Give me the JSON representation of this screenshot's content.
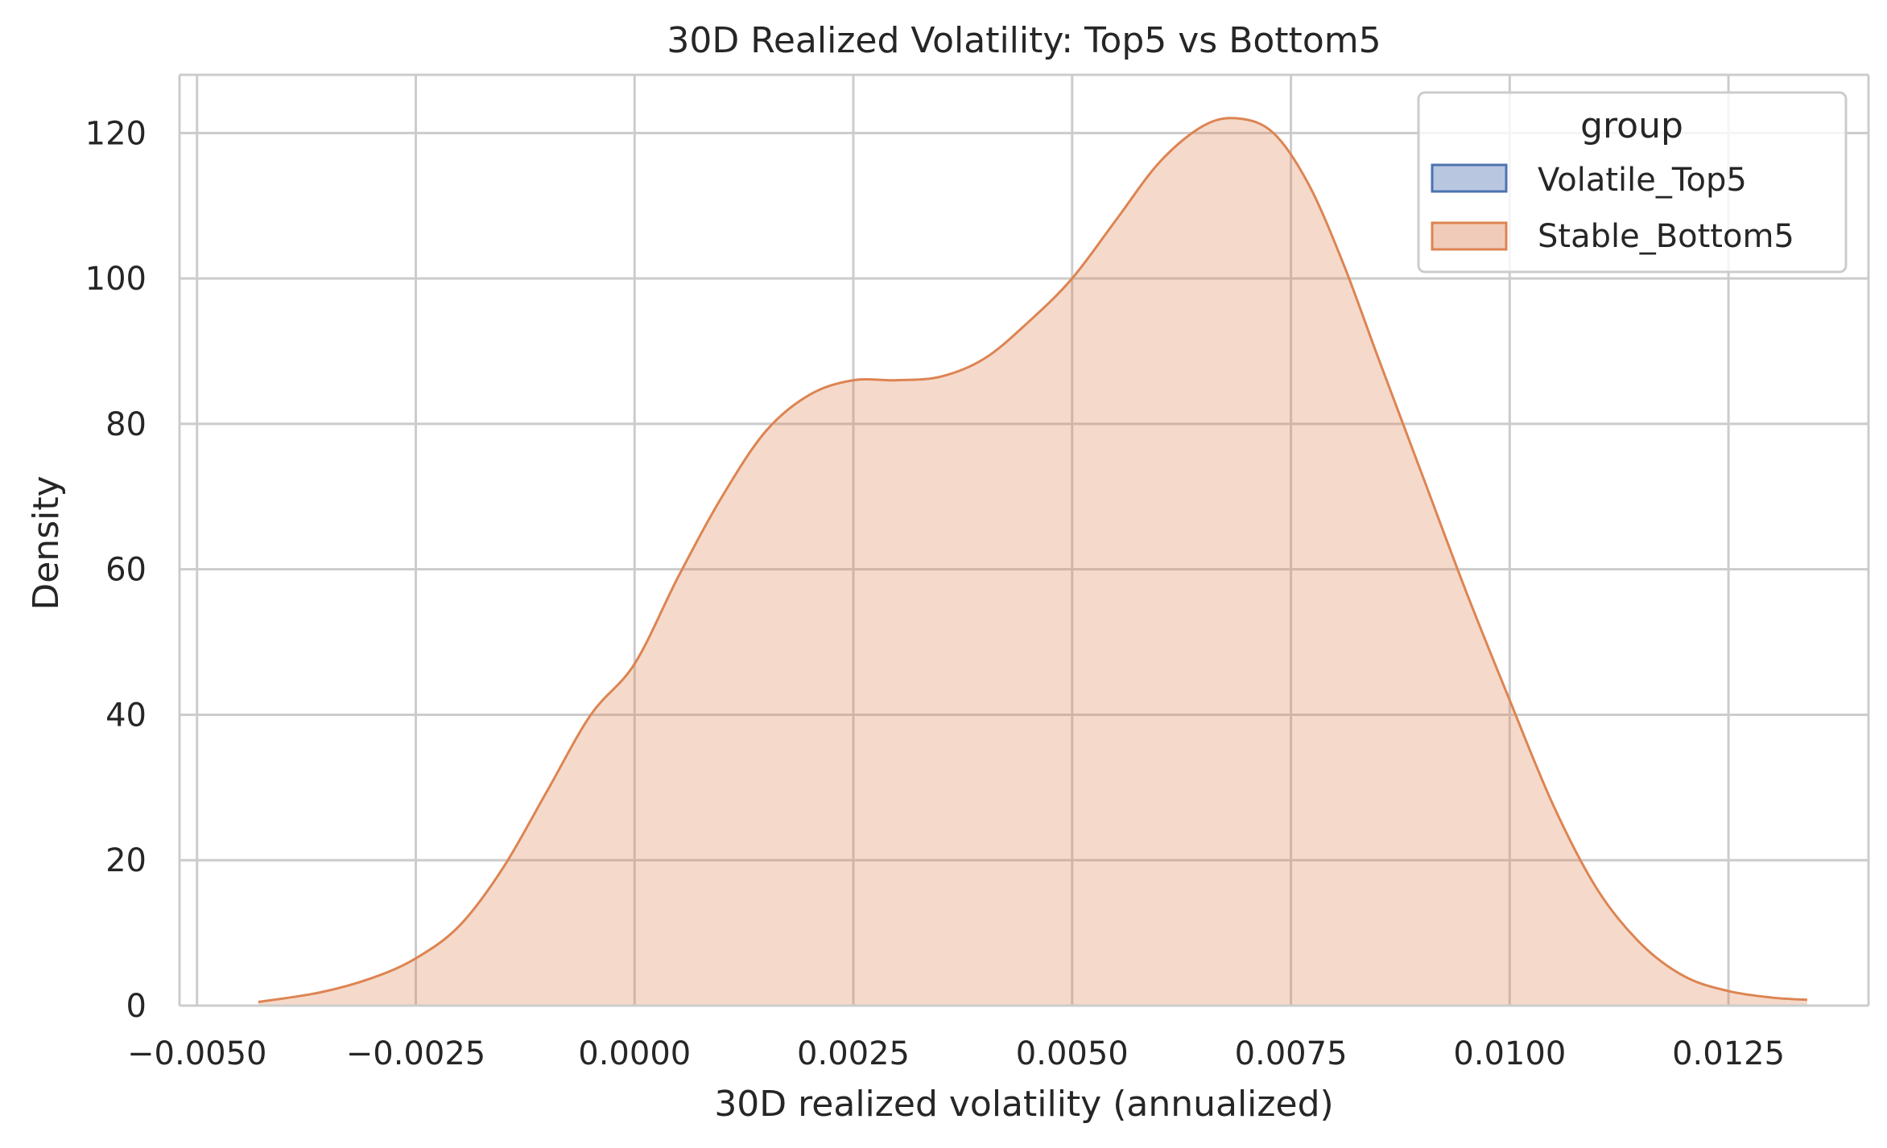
{
  "chart_data": {
    "type": "area",
    "title": "30D Realized Volatility: Top5 vs Bottom5",
    "xlabel": "30D realized volatility (annualized)",
    "ylabel": "Density",
    "xlim": [
      -0.0052,
      0.0141
    ],
    "ylim": [
      0,
      128
    ],
    "xticks": [
      -0.005,
      -0.0025,
      0.0,
      0.0025,
      0.005,
      0.0075,
      0.01,
      0.0125
    ],
    "xtick_labels": [
      "−0.0050",
      "−0.0025",
      "0.0000",
      "0.0025",
      "0.0050",
      "0.0075",
      "0.0100",
      "0.0125"
    ],
    "yticks": [
      0,
      20,
      40,
      60,
      80,
      100,
      120
    ],
    "ytick_labels": [
      "0",
      "20",
      "40",
      "60",
      "80",
      "100",
      "120"
    ],
    "grid": true,
    "legend": {
      "title": "group",
      "placement": "top-right",
      "entries": [
        {
          "label": "Volatile_Top5",
          "line_color": "#4c72b0",
          "fill_color": "#b8c6e0"
        },
        {
          "label": "Stable_Bottom5",
          "line_color": "#dd8452",
          "fill_color": "#f1cbb9"
        }
      ]
    },
    "series": [
      {
        "name": "Volatile_Top5",
        "line_color": "#4c72b0",
        "fill_color": "#4c72b0",
        "x": [],
        "y": []
      },
      {
        "name": "Stable_Bottom5",
        "line_color": "#dd8452",
        "fill_color": "#dd8452",
        "x": [
          -0.0043,
          -0.0036,
          -0.003,
          -0.0025,
          -0.002,
          -0.0015,
          -0.001,
          -0.0005,
          0.0,
          0.0005,
          0.001,
          0.0015,
          0.002,
          0.0025,
          0.003,
          0.0035,
          0.004,
          0.0045,
          0.005,
          0.0055,
          0.006,
          0.0065,
          0.0069,
          0.0073,
          0.0077,
          0.0081,
          0.0085,
          0.009,
          0.0095,
          0.01,
          0.0105,
          0.011,
          0.0115,
          0.012,
          0.0125,
          0.013,
          0.0134
        ],
        "y": [
          0.5,
          1.8,
          3.8,
          6.5,
          11,
          19,
          29.5,
          40,
          47,
          59,
          70,
          79,
          84,
          86,
          86,
          86.5,
          89,
          94,
          100,
          108,
          116,
          121,
          122,
          120,
          113,
          102,
          89,
          73,
          57,
          42,
          27.5,
          16,
          8.5,
          4,
          2,
          1.1,
          0.8
        ]
      }
    ]
  }
}
